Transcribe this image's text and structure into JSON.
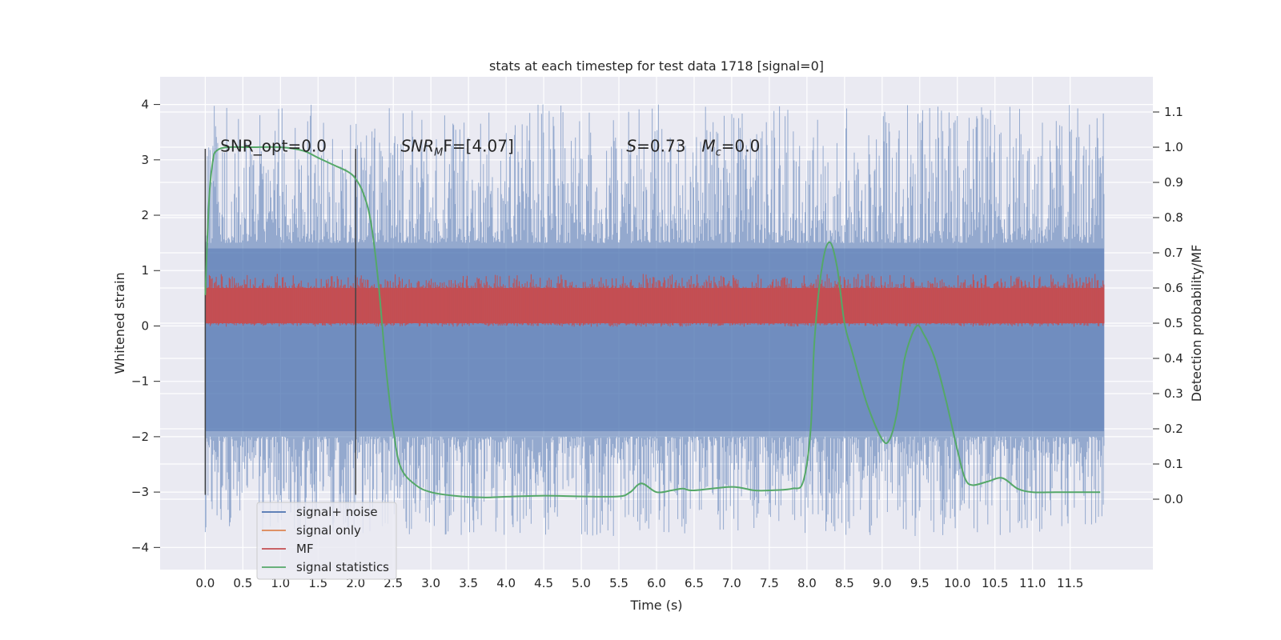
{
  "chart_data": {
    "type": "line",
    "title": "stats at each timestep for test data 1718 [signal=0]",
    "xlabel": "Time (s)",
    "ylabel": "Whitened strain",
    "y2label": "Detection probability/MF",
    "xlim": [
      -0.6,
      12.6
    ],
    "ylim": [
      -4.4,
      4.5
    ],
    "y2lim": [
      -0.2,
      1.2
    ],
    "x_ticks": [
      0.0,
      0.5,
      1.0,
      1.5,
      2.0,
      2.5,
      3.0,
      3.5,
      4.0,
      4.5,
      5.0,
      5.5,
      6.0,
      6.5,
      7.0,
      7.5,
      8.0,
      8.5,
      9.0,
      9.5,
      10.0,
      10.5,
      11.0,
      11.5
    ],
    "x_tick_labels": [
      "0.0",
      "0.5",
      "1.0",
      "1.5",
      "2.0",
      "2.5",
      "3.0",
      "3.5",
      "4.0",
      "4.5",
      "5.0",
      "5.5",
      "6.0",
      "6.5",
      "7.0",
      "7.5",
      "8.0",
      "8.5",
      "9.0",
      "9.5",
      "10.0",
      "10.5",
      "11.0",
      "11.5"
    ],
    "y_ticks": [
      -4,
      -3,
      -2,
      -1,
      0,
      1,
      2,
      3,
      4
    ],
    "y_tick_labels": [
      "−4",
      "−3",
      "−2",
      "−1",
      "0",
      "1",
      "2",
      "3",
      "4"
    ],
    "y2_ticks": [
      0.0,
      0.1,
      0.2,
      0.3,
      0.4,
      0.5,
      0.6,
      0.7,
      0.8,
      0.9,
      1.0,
      1.1
    ],
    "y2_tick_labels": [
      "0.0",
      "0.1",
      "0.2",
      "0.3",
      "0.4",
      "0.5",
      "0.6",
      "0.7",
      "0.8",
      "0.9",
      "1.0",
      "1.1"
    ],
    "grid": true,
    "legend_position": "lower-left",
    "time_range": [
      0.0,
      11.95
    ],
    "series": [
      {
        "name": "signal+ noise",
        "color": "#4c72b0",
        "axis": "left",
        "band_y": [
          -1.9,
          1.4
        ],
        "peak_range": [
          -3.9,
          4.1
        ]
      },
      {
        "name": "signal only",
        "color": "#dd8452",
        "axis": "left",
        "values": []
      },
      {
        "name": "MF",
        "color": "#c44e52",
        "axis": "right",
        "band_y2": [
          0.5,
          0.6
        ],
        "peak_range_y2": [
          0.49,
          0.64
        ]
      },
      {
        "name": "signal statistics",
        "color": "#55a868",
        "axis": "right",
        "x": [
          0.0,
          0.05,
          0.1,
          0.15,
          0.3,
          0.6,
          1.0,
          1.3,
          1.5,
          1.7,
          1.9,
          2.0,
          2.1,
          2.2,
          2.3,
          2.4,
          2.5,
          2.6,
          2.8,
          3.0,
          3.3,
          3.7,
          4.0,
          4.5,
          5.0,
          5.5,
          5.65,
          5.8,
          6.0,
          6.2,
          6.35,
          6.5,
          7.0,
          7.3,
          7.5,
          7.8,
          7.95,
          8.05,
          8.1,
          8.2,
          8.3,
          8.4,
          8.5,
          8.6,
          8.8,
          9.0,
          9.1,
          9.2,
          9.3,
          9.45,
          9.55,
          9.7,
          9.85,
          10.0,
          10.1,
          10.2,
          10.4,
          10.6,
          10.8,
          11.0,
          11.3,
          11.6,
          11.9
        ],
        "values": [
          0.58,
          0.85,
          0.96,
          0.99,
          1.0,
          1.0,
          1.0,
          0.99,
          0.97,
          0.95,
          0.93,
          0.91,
          0.87,
          0.79,
          0.62,
          0.38,
          0.2,
          0.09,
          0.04,
          0.02,
          0.01,
          0.005,
          0.007,
          0.01,
          0.008,
          0.008,
          0.02,
          0.045,
          0.02,
          0.025,
          0.03,
          0.025,
          0.035,
          0.025,
          0.025,
          0.03,
          0.05,
          0.2,
          0.45,
          0.66,
          0.73,
          0.66,
          0.5,
          0.42,
          0.27,
          0.17,
          0.17,
          0.25,
          0.4,
          0.49,
          0.47,
          0.4,
          0.28,
          0.14,
          0.06,
          0.04,
          0.05,
          0.06,
          0.03,
          0.02,
          0.02,
          0.02,
          0.02
        ]
      }
    ],
    "annotations": [
      {
        "x": 0.2,
        "y": 3.15,
        "prefix": "SNR_opt=0.0",
        "italic": "",
        "sub": "",
        "suffix": ""
      },
      {
        "x": 2.6,
        "y": 3.15,
        "prefix": "",
        "italic": "SNR",
        "sub": "M",
        "suffix": "F=[4.07]"
      },
      {
        "x": 5.6,
        "y": 3.15,
        "prefix": "",
        "italic": "S",
        "sub": "",
        "suffix": "=0.73   "
      },
      {
        "x": 6.6,
        "y": 3.15,
        "prefix": "",
        "italic": "M",
        "sub": "c",
        "suffix": "=0.0"
      }
    ],
    "vertical_markers": [
      0.0,
      2.0
    ],
    "colors": {
      "plot_bg": "#eaeaf2",
      "grid": "#ffffff",
      "text": "#262626",
      "vertical_marker": "#444444"
    }
  }
}
